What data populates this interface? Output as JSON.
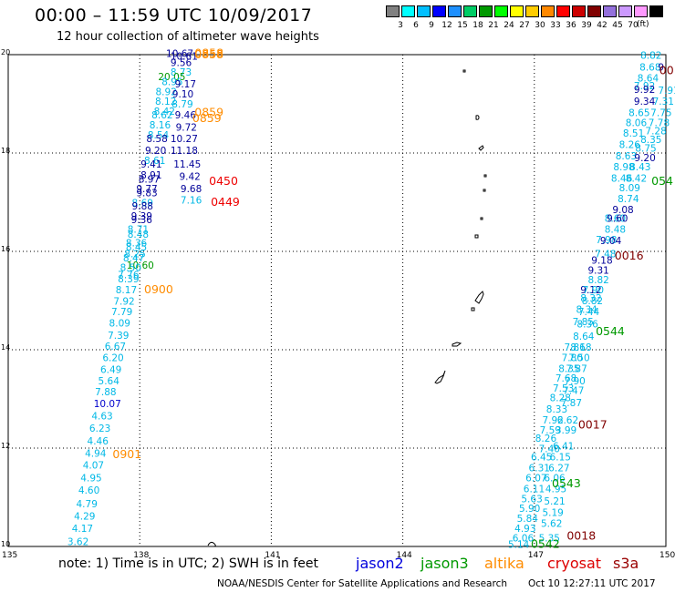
{
  "title": "00:00 – 11:59 UTC 10/09/2017",
  "subtitle": "12 hour collection of altimeter wave heights",
  "scale": {
    "unit": "(ft)",
    "colors": [
      "#808080",
      "#00ffff",
      "#00bfff",
      "#0000ff",
      "#1e90ff",
      "#00cc66",
      "#009900",
      "#00ff00",
      "#ffff00",
      "#ffcc00",
      "#ff8800",
      "#ff0000",
      "#cc0000",
      "#800000",
      "#9370db",
      "#cc99ff",
      "#ff99ff",
      "#000000"
    ],
    "labels": [
      "3",
      "6",
      "9",
      "12",
      "15",
      "18",
      "21",
      "24",
      "27",
      "30",
      "33",
      "36",
      "39",
      "42",
      "45",
      "70"
    ]
  },
  "axes": {
    "x_labels": [
      "135",
      "138",
      "141",
      "144",
      "147",
      "150"
    ],
    "y_labels": [
      "20",
      "18",
      "16",
      "14",
      "12",
      "10"
    ]
  },
  "note": "note: 1) Time is in UTC; 2) SWH is in feet",
  "satellites": [
    {
      "name": "jason2",
      "color": "#0000dd"
    },
    {
      "name": "jason3",
      "color": "#009900"
    },
    {
      "name": "altika",
      "color": "#ff8c00"
    },
    {
      "name": "cryosat",
      "color": "#dd0000"
    },
    {
      "name": "s3a",
      "color": "#990000"
    }
  ],
  "credit": "NOAA/NESDIS Center for Satellite Applications and Research",
  "generated": "Oct 10 12:27:11 UTC 2017",
  "colors": {
    "cyan": "#00b8e6",
    "light_cyan": "#33ccff",
    "dark_blue": "#000099",
    "blue": "#0000cc",
    "green": "#009900",
    "orange": "#ff8c00",
    "red": "#ee0000",
    "maroon": "#800000"
  },
  "track_labels": [
    {
      "text": "0858",
      "color": "orange",
      "lon": 139.25,
      "lat": 19.95
    },
    {
      "text": "0858",
      "color": "orange",
      "lon": 139.25,
      "lat": 19.93
    },
    {
      "text": "0859",
      "color": "orange",
      "lon": 139.25,
      "lat": 18.75
    },
    {
      "text": "0859",
      "color": "orange",
      "lon": 139.2,
      "lat": 18.63
    },
    {
      "text": "0450",
      "color": "red",
      "lon": 139.58,
      "lat": 17.35
    },
    {
      "text": "0449",
      "color": "red",
      "lon": 139.62,
      "lat": 16.93
    },
    {
      "text": "0900",
      "color": "orange",
      "lon": 138.1,
      "lat": 15.15
    },
    {
      "text": "0901",
      "color": "orange",
      "lon": 137.38,
      "lat": 11.8
    },
    {
      "text": "0016",
      "color": "maroon",
      "lon": 148.83,
      "lat": 15.83
    },
    {
      "text": "0544",
      "color": "green",
      "lon": 148.4,
      "lat": 14.3
    },
    {
      "text": "0017",
      "color": "maroon",
      "lon": 148.0,
      "lat": 12.4
    },
    {
      "text": "0543",
      "color": "green",
      "lon": 147.4,
      "lat": 11.2
    },
    {
      "text": "0018",
      "color": "maroon",
      "lon": 147.74,
      "lat": 10.14
    },
    {
      "text": "0542",
      "color": "green",
      "lon": 146.92,
      "lat": 9.97
    },
    {
      "text": "054",
      "color": "green",
      "lon": 149.67,
      "lat": 17.35
    },
    {
      "text": "00",
      "color": "maroon",
      "lon": 149.85,
      "lat": 19.6
    }
  ],
  "heights": [
    {
      "t": "10.67",
      "c": "dark_blue",
      "lon": 138.6,
      "lat": 19.95
    },
    {
      "t": "10.61",
      "c": "dark_blue",
      "lon": 138.7,
      "lat": 19.9
    },
    {
      "t": "9.56",
      "c": "dark_blue",
      "lon": 138.7,
      "lat": 19.77
    },
    {
      "t": "8.73",
      "c": "cyan",
      "lon": 138.7,
      "lat": 19.57
    },
    {
      "t": "20.05",
      "c": "green",
      "lon": 138.42,
      "lat": 19.48
    },
    {
      "t": "8.95",
      "c": "cyan",
      "lon": 138.5,
      "lat": 19.38
    },
    {
      "t": "9.17",
      "c": "dark_blue",
      "lon": 138.8,
      "lat": 19.33
    },
    {
      "t": "8.92",
      "c": "cyan",
      "lon": 138.36,
      "lat": 19.18
    },
    {
      "t": "9.10",
      "c": "dark_blue",
      "lon": 138.74,
      "lat": 19.13
    },
    {
      "t": "8.12",
      "c": "cyan",
      "lon": 138.35,
      "lat": 18.98
    },
    {
      "t": "8.79",
      "c": "cyan",
      "lon": 138.73,
      "lat": 18.93
    },
    {
      "t": "8.42",
      "c": "cyan",
      "lon": 138.32,
      "lat": 18.78
    },
    {
      "t": "8.62",
      "c": "cyan",
      "lon": 138.27,
      "lat": 18.7
    },
    {
      "t": "9.46",
      "c": "dark_blue",
      "lon": 138.8,
      "lat": 18.7
    },
    {
      "t": "8.16",
      "c": "cyan",
      "lon": 138.22,
      "lat": 18.5
    },
    {
      "t": "9.72",
      "c": "dark_blue",
      "lon": 138.82,
      "lat": 18.45
    },
    {
      "t": "8.54",
      "c": "cyan",
      "lon": 138.18,
      "lat": 18.3
    },
    {
      "t": "8.58",
      "c": "dark_blue",
      "lon": 138.15,
      "lat": 18.22
    },
    {
      "t": "10.27",
      "c": "dark_blue",
      "lon": 138.7,
      "lat": 18.22
    },
    {
      "t": "9.20",
      "c": "dark_blue",
      "lon": 138.12,
      "lat": 17.98
    },
    {
      "t": "11.18",
      "c": "dark_blue",
      "lon": 138.7,
      "lat": 17.98
    },
    {
      "t": "8.61",
      "c": "cyan",
      "lon": 138.1,
      "lat": 17.78
    },
    {
      "t": "9.41",
      "c": "dark_blue",
      "lon": 138.02,
      "lat": 17.7
    },
    {
      "t": "11.45",
      "c": "dark_blue",
      "lon": 138.77,
      "lat": 17.7
    },
    {
      "t": "8.91",
      "c": "dark_blue",
      "lon": 138.02,
      "lat": 17.48
    },
    {
      "t": "9.42",
      "c": "dark_blue",
      "lon": 138.9,
      "lat": 17.45
    },
    {
      "t": "8.97",
      "c": "dark_blue",
      "lon": 137.97,
      "lat": 17.4
    },
    {
      "t": "9.77",
      "c": "dark_blue",
      "lon": 137.92,
      "lat": 17.2
    },
    {
      "t": "9.68",
      "c": "dark_blue",
      "lon": 138.93,
      "lat": 17.2
    },
    {
      "t": "9.83",
      "c": "dark_blue",
      "lon": 137.92,
      "lat": 17.12
    },
    {
      "t": "8.69",
      "c": "cyan",
      "lon": 137.82,
      "lat": 16.92
    },
    {
      "t": "7.16",
      "c": "cyan",
      "lon": 138.93,
      "lat": 16.97
    },
    {
      "t": "9.88",
      "c": "dark_blue",
      "lon": 137.82,
      "lat": 16.85
    },
    {
      "t": "9.39",
      "c": "dark_blue",
      "lon": 137.8,
      "lat": 16.65
    },
    {
      "t": "9.36",
      "c": "dark_blue",
      "lon": 137.8,
      "lat": 16.57
    },
    {
      "t": "8.71",
      "c": "cyan",
      "lon": 137.72,
      "lat": 16.38
    },
    {
      "t": "8.48",
      "c": "cyan",
      "lon": 137.72,
      "lat": 16.28
    },
    {
      "t": "8.36",
      "c": "cyan",
      "lon": 137.68,
      "lat": 16.1
    },
    {
      "t": "8.45",
      "c": "cyan",
      "lon": 137.68,
      "lat": 16.02
    },
    {
      "t": "8.25",
      "c": "cyan",
      "lon": 137.65,
      "lat": 15.88
    },
    {
      "t": "8.47",
      "c": "cyan",
      "lon": 137.62,
      "lat": 15.8
    },
    {
      "t": "10.60",
      "c": "green",
      "lon": 137.7,
      "lat": 15.65
    },
    {
      "t": "8.50",
      "c": "cyan",
      "lon": 137.55,
      "lat": 15.6
    },
    {
      "t": "7.76",
      "c": "cyan",
      "lon": 137.5,
      "lat": 15.45
    },
    {
      "t": "8.39",
      "c": "cyan",
      "lon": 137.5,
      "lat": 15.37
    },
    {
      "t": "8.17",
      "c": "cyan",
      "lon": 137.45,
      "lat": 15.15
    },
    {
      "t": "7.92",
      "c": "cyan",
      "lon": 137.4,
      "lat": 14.92
    },
    {
      "t": "7.79",
      "c": "cyan",
      "lon": 137.35,
      "lat": 14.7
    },
    {
      "t": "8.09",
      "c": "cyan",
      "lon": 137.3,
      "lat": 14.47
    },
    {
      "t": "7.39",
      "c": "cyan",
      "lon": 137.27,
      "lat": 14.22
    },
    {
      "t": "6.67",
      "c": "cyan",
      "lon": 137.2,
      "lat": 14.0
    },
    {
      "t": "6.20",
      "c": "cyan",
      "lon": 137.15,
      "lat": 13.77
    },
    {
      "t": "6.49",
      "c": "cyan",
      "lon": 137.1,
      "lat": 13.53
    },
    {
      "t": "5.64",
      "c": "cyan",
      "lon": 137.05,
      "lat": 13.3
    },
    {
      "t": "7.88",
      "c": "cyan",
      "lon": 136.98,
      "lat": 13.07
    },
    {
      "t": "10.07",
      "c": "blue",
      "lon": 136.95,
      "lat": 12.83
    },
    {
      "t": "4.63",
      "c": "cyan",
      "lon": 136.9,
      "lat": 12.58
    },
    {
      "t": "6.23",
      "c": "cyan",
      "lon": 136.85,
      "lat": 12.33
    },
    {
      "t": "4.46",
      "c": "cyan",
      "lon": 136.8,
      "lat": 12.07
    },
    {
      "t": "4.94",
      "c": "cyan",
      "lon": 136.75,
      "lat": 11.82
    },
    {
      "t": "4.07",
      "c": "cyan",
      "lon": 136.7,
      "lat": 11.58
    },
    {
      "t": "4.95",
      "c": "cyan",
      "lon": 136.65,
      "lat": 11.32
    },
    {
      "t": "4.60",
      "c": "cyan",
      "lon": 136.6,
      "lat": 11.07
    },
    {
      "t": "4.79",
      "c": "cyan",
      "lon": 136.55,
      "lat": 10.8
    },
    {
      "t": "4.29",
      "c": "cyan",
      "lon": 136.5,
      "lat": 10.55
    },
    {
      "t": "4.17",
      "c": "cyan",
      "lon": 136.45,
      "lat": 10.3
    },
    {
      "t": "3.62",
      "c": "cyan",
      "lon": 136.35,
      "lat": 10.03
    },
    {
      "t": "8.82",
      "c": "cyan",
      "lon": 149.42,
      "lat": 19.92
    },
    {
      "t": "8.68",
      "c": "cyan",
      "lon": 149.4,
      "lat": 19.68
    },
    {
      "t": "9",
      "c": "dark_blue",
      "lon": 149.82,
      "lat": 19.68
    },
    {
      "t": "8.64",
      "c": "cyan",
      "lon": 149.35,
      "lat": 19.45
    },
    {
      "t": "7.92",
      "c": "cyan",
      "lon": 149.27,
      "lat": 19.3
    },
    {
      "t": "9.92",
      "c": "dark_blue",
      "lon": 149.27,
      "lat": 19.22
    },
    {
      "t": "7.91",
      "c": "cyan",
      "lon": 149.82,
      "lat": 19.2
    },
    {
      "t": "9.34",
      "c": "dark_blue",
      "lon": 149.27,
      "lat": 18.98
    },
    {
      "t": "7.31",
      "c": "cyan",
      "lon": 149.7,
      "lat": 18.98
    },
    {
      "t": "8.65",
      "c": "cyan",
      "lon": 149.15,
      "lat": 18.75
    },
    {
      "t": "7.75",
      "c": "cyan",
      "lon": 149.65,
      "lat": 18.75
    },
    {
      "t": "8.06",
      "c": "cyan",
      "lon": 149.08,
      "lat": 18.55
    },
    {
      "t": "7.78",
      "c": "cyan",
      "lon": 149.6,
      "lat": 18.55
    },
    {
      "t": "8.51",
      "c": "cyan",
      "lon": 149.02,
      "lat": 18.33
    },
    {
      "t": "7.28",
      "c": "cyan",
      "lon": 149.53,
      "lat": 18.38
    },
    {
      "t": "8.26",
      "c": "cyan",
      "lon": 148.93,
      "lat": 18.1
    },
    {
      "t": "8.35",
      "c": "cyan",
      "lon": 149.42,
      "lat": 18.2
    },
    {
      "t": "8.75",
      "c": "cyan",
      "lon": 149.3,
      "lat": 18.03
    },
    {
      "t": "8.63",
      "c": "cyan",
      "lon": 148.85,
      "lat": 17.87
    },
    {
      "t": "9.20",
      "c": "dark_blue",
      "lon": 149.28,
      "lat": 17.83
    },
    {
      "t": "8.98",
      "c": "cyan",
      "lon": 148.8,
      "lat": 17.65
    },
    {
      "t": "8.43",
      "c": "cyan",
      "lon": 149.17,
      "lat": 17.65
    },
    {
      "t": "8.46",
      "c": "cyan",
      "lon": 148.75,
      "lat": 17.42
    },
    {
      "t": "8.42",
      "c": "cyan",
      "lon": 149.08,
      "lat": 17.42
    },
    {
      "t": "8.09",
      "c": "cyan",
      "lon": 148.93,
      "lat": 17.22
    },
    {
      "t": "8.74",
      "c": "cyan",
      "lon": 148.9,
      "lat": 17.0
    },
    {
      "t": "9.08",
      "c": "dark_blue",
      "lon": 148.78,
      "lat": 16.78
    },
    {
      "t": "8.60",
      "c": "cyan",
      "lon": 148.6,
      "lat": 16.6
    },
    {
      "t": "9.60",
      "c": "dark_blue",
      "lon": 148.65,
      "lat": 16.6
    },
    {
      "t": "8.48",
      "c": "cyan",
      "lon": 148.6,
      "lat": 16.38
    },
    {
      "t": "7.98",
      "c": "cyan",
      "lon": 148.4,
      "lat": 16.17
    },
    {
      "t": "9.04",
      "c": "dark_blue",
      "lon": 148.5,
      "lat": 16.15
    },
    {
      "t": "7.48",
      "c": "cyan",
      "lon": 148.38,
      "lat": 15.88
    },
    {
      "t": "9.18",
      "c": "dark_blue",
      "lon": 148.3,
      "lat": 15.75
    },
    {
      "t": "9.31",
      "c": "dark_blue",
      "lon": 148.22,
      "lat": 15.55
    },
    {
      "t": "8.82",
      "c": "cyan",
      "lon": 148.22,
      "lat": 15.35
    },
    {
      "t": "9.12",
      "c": "dark_blue",
      "lon": 148.05,
      "lat": 15.15
    },
    {
      "t": "7.90",
      "c": "cyan",
      "lon": 148.1,
      "lat": 15.15
    },
    {
      "t": "8.32",
      "c": "cyan",
      "lon": 148.05,
      "lat": 14.98
    },
    {
      "t": "8.82",
      "c": "cyan",
      "lon": 148.08,
      "lat": 14.93
    },
    {
      "t": "8.34",
      "c": "cyan",
      "lon": 147.95,
      "lat": 14.75
    },
    {
      "t": "7.44",
      "c": "cyan",
      "lon": 148.0,
      "lat": 14.7
    },
    {
      "t": "7.85",
      "c": "cyan",
      "lon": 147.87,
      "lat": 14.5
    },
    {
      "t": "8.36",
      "c": "cyan",
      "lon": 147.97,
      "lat": 14.45
    },
    {
      "t": "8.64",
      "c": "cyan",
      "lon": 147.88,
      "lat": 14.2
    },
    {
      "t": "7.86",
      "c": "cyan",
      "lon": 147.68,
      "lat": 13.98
    },
    {
      "t": "8.18",
      "c": "cyan",
      "lon": 147.82,
      "lat": 13.98
    },
    {
      "t": "7.80",
      "c": "cyan",
      "lon": 147.62,
      "lat": 13.77
    },
    {
      "t": "7.50",
      "c": "cyan",
      "lon": 147.78,
      "lat": 13.77
    },
    {
      "t": "8.35",
      "c": "cyan",
      "lon": 147.55,
      "lat": 13.55
    },
    {
      "t": "7.87",
      "c": "cyan",
      "lon": 147.72,
      "lat": 13.55
    },
    {
      "t": "7.68",
      "c": "cyan",
      "lon": 147.48,
      "lat": 13.35
    },
    {
      "t": "7.90",
      "c": "cyan",
      "lon": 147.68,
      "lat": 13.3
    },
    {
      "t": "7.53",
      "c": "cyan",
      "lon": 147.42,
      "lat": 13.15
    },
    {
      "t": "7.47",
      "c": "cyan",
      "lon": 147.65,
      "lat": 13.1
    },
    {
      "t": "8.28",
      "c": "cyan",
      "lon": 147.35,
      "lat": 12.95
    },
    {
      "t": "7.87",
      "c": "cyan",
      "lon": 147.6,
      "lat": 12.85
    },
    {
      "t": "8.33",
      "c": "cyan",
      "lon": 147.27,
      "lat": 12.72
    },
    {
      "t": "7.92",
      "c": "cyan",
      "lon": 147.18,
      "lat": 12.5
    },
    {
      "t": "6.62",
      "c": "cyan",
      "lon": 147.52,
      "lat": 12.5
    },
    {
      "t": "7.59",
      "c": "cyan",
      "lon": 147.12,
      "lat": 12.3
    },
    {
      "t": "3.99",
      "c": "cyan",
      "lon": 147.48,
      "lat": 12.3
    },
    {
      "t": "8.26",
      "c": "cyan",
      "lon": 147.02,
      "lat": 12.13
    },
    {
      "t": "7.40",
      "c": "cyan",
      "lon": 147.1,
      "lat": 11.92
    },
    {
      "t": "6.41",
      "c": "cyan",
      "lon": 147.42,
      "lat": 11.97
    },
    {
      "t": "6.45",
      "c": "cyan",
      "lon": 146.92,
      "lat": 11.75
    },
    {
      "t": "6.15",
      "c": "cyan",
      "lon": 147.35,
      "lat": 11.75
    },
    {
      "t": "6.31",
      "c": "cyan",
      "lon": 146.87,
      "lat": 11.53
    },
    {
      "t": "6.27",
      "c": "cyan",
      "lon": 147.32,
      "lat": 11.53
    },
    {
      "t": "6.07",
      "c": "cyan",
      "lon": 146.8,
      "lat": 11.32
    },
    {
      "t": "6.06",
      "c": "cyan",
      "lon": 147.22,
      "lat": 11.32
    },
    {
      "t": "6.11",
      "c": "cyan",
      "lon": 146.75,
      "lat": 11.1
    },
    {
      "t": "4.95",
      "c": "cyan",
      "lon": 147.25,
      "lat": 11.1
    },
    {
      "t": "5.63",
      "c": "cyan",
      "lon": 146.7,
      "lat": 10.9
    },
    {
      "t": "5.21",
      "c": "cyan",
      "lon": 147.22,
      "lat": 10.85
    },
    {
      "t": "5.90",
      "c": "cyan",
      "lon": 146.65,
      "lat": 10.7
    },
    {
      "t": "5.19",
      "c": "cyan",
      "lon": 147.18,
      "lat": 10.62
    },
    {
      "t": "5.84",
      "c": "cyan",
      "lon": 146.6,
      "lat": 10.5
    },
    {
      "t": "4.93",
      "c": "cyan",
      "lon": 146.55,
      "lat": 10.3
    },
    {
      "t": "5.62",
      "c": "cyan",
      "lon": 147.15,
      "lat": 10.4
    },
    {
      "t": "6.06",
      "c": "cyan",
      "lon": 146.5,
      "lat": 10.1
    },
    {
      "t": "5.35",
      "c": "cyan",
      "lon": 147.1,
      "lat": 10.1
    },
    {
      "t": "5.14",
      "c": "cyan",
      "lon": 146.4,
      "lat": 9.97
    }
  ]
}
